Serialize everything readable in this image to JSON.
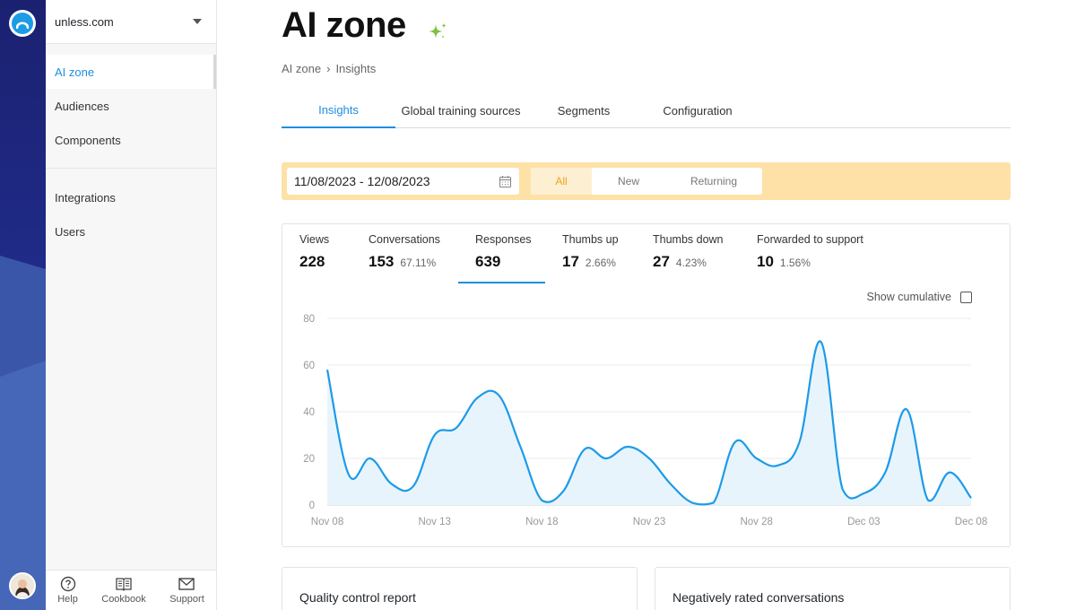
{
  "org": {
    "name": "unless.com"
  },
  "sidebar": {
    "group1": [
      {
        "label": "AI zone",
        "active": true
      },
      {
        "label": "Audiences"
      },
      {
        "label": "Components"
      }
    ],
    "group2": [
      {
        "label": "Integrations"
      },
      {
        "label": "Users"
      }
    ],
    "footer": [
      {
        "label": "Help",
        "icon": "help-icon"
      },
      {
        "label": "Cookbook",
        "icon": "book-icon"
      },
      {
        "label": "Support",
        "icon": "mail-icon"
      }
    ]
  },
  "page": {
    "title": "AI zone",
    "breadcrumb": [
      "AI zone",
      "›",
      "Insights"
    ]
  },
  "tabs": [
    "Insights",
    "Global training sources",
    "Segments",
    "Configuration"
  ],
  "filter": {
    "date_range": "11/08/2023 - 12/08/2023",
    "segments": [
      "All",
      "New",
      "Returning"
    ],
    "active_segment": "All"
  },
  "metrics": [
    {
      "label": "Views",
      "value": "228",
      "pct": ""
    },
    {
      "label": "Conversations",
      "value": "153",
      "pct": "67.11%"
    },
    {
      "label": "Responses",
      "value": "639",
      "pct": ""
    },
    {
      "label": "Thumbs up",
      "value": "17",
      "pct": "2.66%"
    },
    {
      "label": "Thumbs down",
      "value": "27",
      "pct": "4.23%"
    },
    {
      "label": "Forwarded to support",
      "value": "10",
      "pct": "1.56%"
    }
  ],
  "show_cumulative_label": "Show cumulative",
  "chart_data": {
    "type": "area",
    "x": [
      "Nov 08",
      "Nov 09",
      "Nov 10",
      "Nov 11",
      "Nov 12",
      "Nov 13",
      "Nov 14",
      "Nov 15",
      "Nov 16",
      "Nov 17",
      "Nov 18",
      "Nov 19",
      "Nov 20",
      "Nov 21",
      "Nov 22",
      "Nov 23",
      "Nov 24",
      "Nov 25",
      "Nov 26",
      "Nov 27",
      "Nov 28",
      "Nov 29",
      "Nov 30",
      "Dec 01",
      "Dec 02",
      "Dec 03",
      "Dec 04",
      "Dec 05",
      "Dec 06",
      "Dec 07",
      "Dec 08"
    ],
    "values": [
      58,
      13,
      20,
      9,
      8,
      30,
      33,
      46,
      47,
      25,
      2,
      6,
      24,
      20,
      25,
      20,
      9,
      1,
      1,
      27,
      20,
      17,
      27,
      70,
      7,
      5,
      14,
      41,
      2,
      14,
      3
    ],
    "x_tick_labels": [
      "Nov 08",
      "Nov 13",
      "Nov 18",
      "Nov 23",
      "Nov 28",
      "Dec 03",
      "Dec 08"
    ],
    "y_ticks": [
      0,
      20,
      40,
      60,
      80
    ],
    "ylim": [
      0,
      80
    ],
    "grid": true,
    "line_color": "#1d9be8",
    "fill_color": "#e6f3fc"
  },
  "bottom_cards": [
    "Quality control report",
    "Negatively rated conversations"
  ]
}
